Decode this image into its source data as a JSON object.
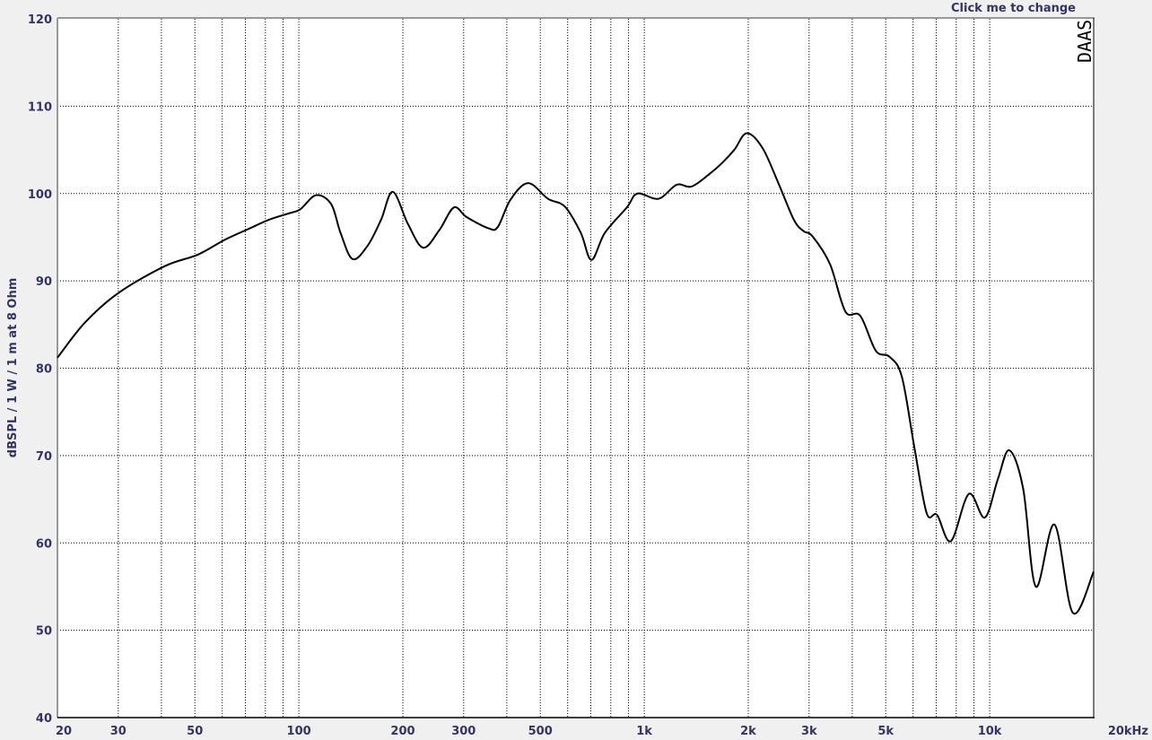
{
  "header": {
    "change_label": "Click me to change",
    "watermark": "DAAS"
  },
  "chart_data": {
    "type": "line",
    "title": "",
    "xlabel": "",
    "ylabel": "dBSPL / 1 W / 1 m at 8 Ohm",
    "xscale": "log",
    "xlim": [
      20,
      20000
    ],
    "ylim": [
      40,
      120
    ],
    "grid": true,
    "line_color": "#000000",
    "xticks": [
      20,
      30,
      50,
      100,
      200,
      300,
      500,
      1000,
      2000,
      3000,
      5000,
      10000,
      20000
    ],
    "xtick_labels": [
      "20",
      "30",
      "50",
      "100",
      "200",
      "300",
      "500",
      "1k",
      "2k",
      "3k",
      "5k",
      "10k",
      "20kHz"
    ],
    "yticks": [
      40,
      50,
      60,
      70,
      80,
      90,
      100,
      110,
      120
    ],
    "ytick_labels": [
      "40",
      "50",
      "60",
      "70",
      "80",
      "90",
      "100",
      "110",
      "120"
    ],
    "series": [
      {
        "x": [
          20,
          24,
          30,
          41,
          51,
          61,
          72,
          82,
          93,
          101,
          112,
          124,
          132,
          143,
          158,
          173,
          187,
          207,
          229,
          255,
          281,
          306,
          355,
          377,
          410,
          461,
          526,
          589,
          655,
          703,
          769,
          890,
          956,
          1100,
          1240,
          1370,
          1540,
          1680,
          1822,
          1980,
          2200,
          2450,
          2710,
          2890,
          3070,
          3450,
          3820,
          4220,
          4680,
          5130,
          5570,
          6060,
          6570,
          7040,
          7720,
          8700,
          9680,
          10560,
          11400,
          12500,
          13600,
          15400,
          17400,
          20000
        ],
        "y": [
          81.2,
          85.2,
          88.6,
          91.7,
          93.0,
          94.7,
          96.0,
          97.0,
          97.7,
          98.2,
          99.8,
          98.8,
          95.5,
          92.5,
          94.0,
          97.0,
          100.2,
          96.5,
          93.8,
          95.8,
          98.4,
          97.3,
          96.0,
          96.2,
          99.3,
          101.2,
          99.4,
          98.5,
          95.5,
          92.4,
          95.5,
          98.4,
          100.0,
          99.4,
          101.0,
          100.8,
          102.2,
          103.5,
          105.0,
          106.9,
          105.2,
          101.1,
          97.0,
          95.7,
          95.1,
          91.9,
          86.5,
          86.0,
          82.0,
          81.3,
          79.0,
          70.8,
          63.4,
          63.2,
          60.2,
          65.6,
          62.9,
          67.3,
          70.6,
          66.2,
          55.0,
          62.1,
          52.0,
          56.7
        ]
      }
    ]
  }
}
